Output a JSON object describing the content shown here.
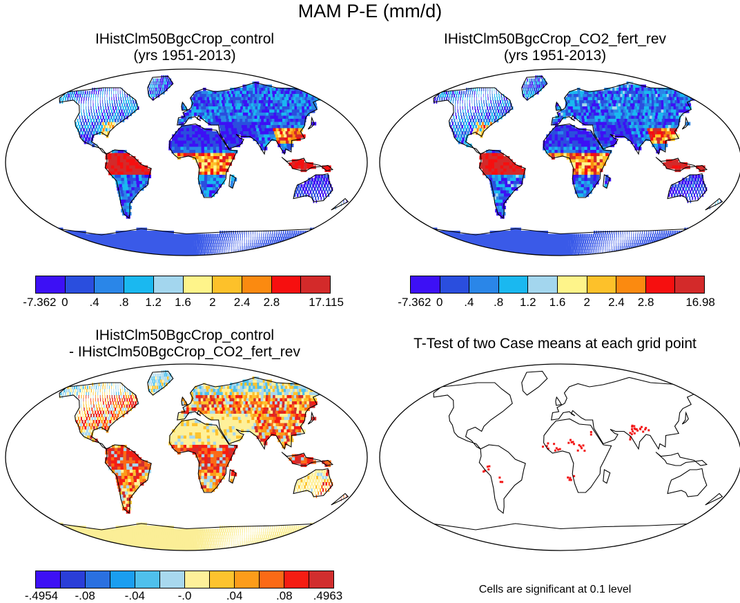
{
  "title": "MAM P-E (mm/d)",
  "panels": [
    {
      "title_line1": "IHistClm50BgcCrop_control",
      "title_line2": "(yrs 1951-2013)"
    },
    {
      "title_line1": "IHistClm50BgcCrop_CO2_fert_rev",
      "title_line2": "(yrs 1951-2013)"
    },
    {
      "title_line1": "IHistClm50BgcCrop_control",
      "title_line2": "- IHistClm50BgcCrop_CO2_fert_rev"
    },
    {
      "title_line1": "T-Test of two Case means at each grid point",
      "title_line2": ""
    }
  ],
  "colorbars": {
    "panel1": {
      "labels": [
        "-7.362",
        "0",
        ".4",
        ".8",
        "1.2",
        "1.6",
        "2",
        "2.4",
        "2.8",
        "17.115"
      ],
      "colors": [
        "#3d10f5",
        "#2a4ede",
        "#2a86e8",
        "#1ab8f0",
        "#a3d6ee",
        "#fef48a",
        "#fdc12a",
        "#fb8a10",
        "#f60f0f",
        "#d32a2a"
      ]
    },
    "panel2": {
      "labels": [
        "-7.362",
        "0",
        ".4",
        ".8",
        "1.2",
        "1.6",
        "2",
        "2.4",
        "2.8",
        "16.98"
      ],
      "colors": [
        "#3d10f5",
        "#2a4ede",
        "#2a86e8",
        "#1ab8f0",
        "#a3d6ee",
        "#fef48a",
        "#fdc12a",
        "#fb8a10",
        "#f60f0f",
        "#d32a2a"
      ]
    },
    "panel3": {
      "labels": [
        "-.4954",
        "-.08",
        "-.04",
        "-.0",
        ".04",
        ".08",
        ".4963"
      ],
      "colors": [
        "#3d10f5",
        "#2a3ed8",
        "#2a70e0",
        "#1a9ef0",
        "#4fc0ec",
        "#a8d8ee",
        "#fef09a",
        "#fdc32e",
        "#fc9c1a",
        "#fb6a16",
        "#f51d13",
        "#d12e2e"
      ]
    }
  },
  "note": "Cells are significant at 0.1 level",
  "legend_colors": {
    "ocean": "#ffffff",
    "antarctica_mean": "#3a5ae8",
    "antarctica_diff": "#fbee97",
    "significant": "#f21a1a"
  }
}
